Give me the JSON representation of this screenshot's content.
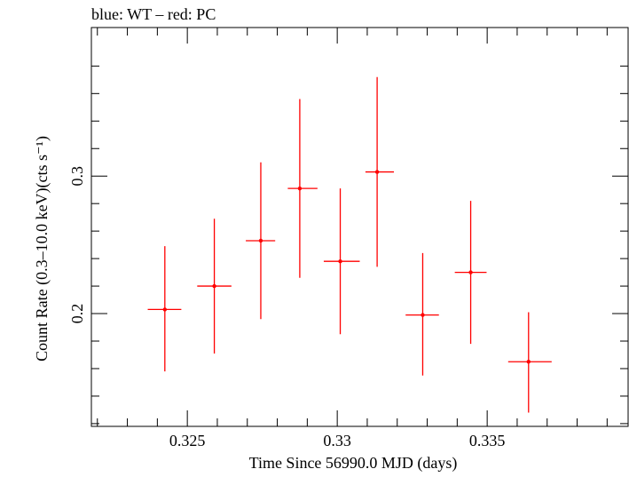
{
  "chart_data": {
    "type": "scatter",
    "title": "blue: WT – red: PC",
    "xlabel": "Time Since 56990.0 MJD (days)",
    "ylabel": "Count Rate (0.3–10.0 keV)(cts s⁻¹)",
    "xlim": [
      0.3218,
      0.3397
    ],
    "ylim": [
      0.118,
      0.408
    ],
    "x_ticks": [
      {
        "value": 0.325,
        "label": "0.325"
      },
      {
        "value": 0.33,
        "label": "0.33"
      },
      {
        "value": 0.335,
        "label": "0.335"
      }
    ],
    "y_ticks": [
      {
        "value": 0.2,
        "label": "0.2"
      },
      {
        "value": 0.3,
        "label": "0.3"
      }
    ],
    "grid": false,
    "series": [
      {
        "color": "#ff0000",
        "marker": "point-with-errorbars",
        "points": [
          {
            "x": 0.32425,
            "xlo": 0.32368,
            "xhi": 0.3248,
            "y": 0.203,
            "ylo": 0.158,
            "yhi": 0.249
          },
          {
            "x": 0.3259,
            "xlo": 0.32533,
            "xhi": 0.32647,
            "y": 0.22,
            "ylo": 0.171,
            "yhi": 0.269
          },
          {
            "x": 0.32745,
            "xlo": 0.32695,
            "xhi": 0.32793,
            "y": 0.253,
            "ylo": 0.196,
            "yhi": 0.31
          },
          {
            "x": 0.32875,
            "xlo": 0.32835,
            "xhi": 0.32934,
            "y": 0.291,
            "ylo": 0.226,
            "yhi": 0.356
          },
          {
            "x": 0.3301,
            "xlo": 0.32955,
            "xhi": 0.33075,
            "y": 0.238,
            "ylo": 0.185,
            "yhi": 0.291
          },
          {
            "x": 0.33133,
            "xlo": 0.33094,
            "xhi": 0.33189,
            "y": 0.303,
            "ylo": 0.234,
            "yhi": 0.372
          },
          {
            "x": 0.33285,
            "xlo": 0.33228,
            "xhi": 0.33339,
            "y": 0.199,
            "ylo": 0.155,
            "yhi": 0.244
          },
          {
            "x": 0.33445,
            "xlo": 0.33392,
            "xhi": 0.33498,
            "y": 0.23,
            "ylo": 0.178,
            "yhi": 0.282
          },
          {
            "x": 0.33638,
            "xlo": 0.3357,
            "xhi": 0.33715,
            "y": 0.165,
            "ylo": 0.128,
            "yhi": 0.201
          }
        ]
      }
    ]
  }
}
